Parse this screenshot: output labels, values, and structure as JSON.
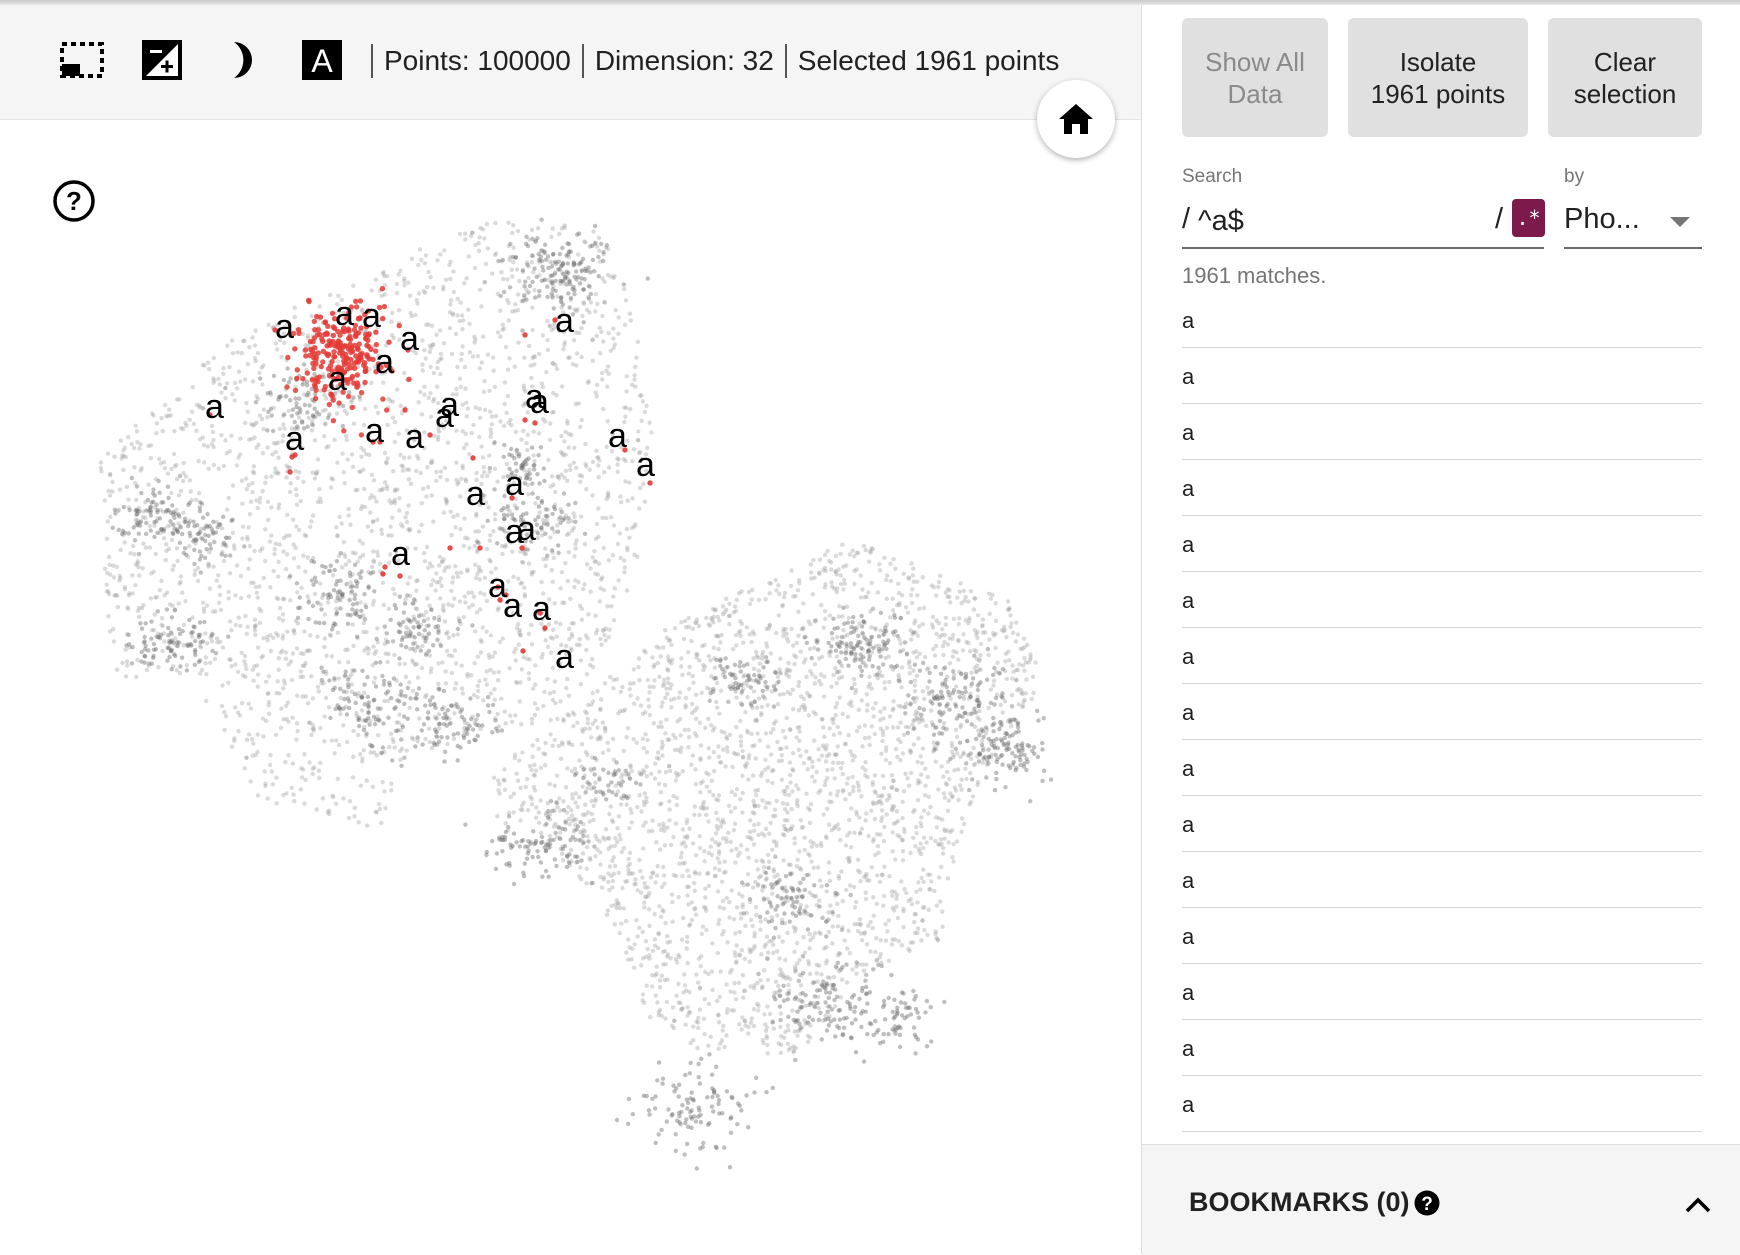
{
  "toolbar": {
    "icons": [
      "rectangle-select-icon",
      "night-mode-contrast-icon",
      "moon-icon",
      "label-a-icon"
    ],
    "points_text": "Points: 100000",
    "dimension_text": "Dimension: 32",
    "selected_text": "Selected 1961 points"
  },
  "actions": {
    "show_all_line1": "Show All",
    "show_all_line2": "Data",
    "isolate_line1": "Isolate",
    "isolate_line2": "1961 points",
    "clear_line1": "Clear",
    "clear_line2": "selection"
  },
  "search": {
    "label": "Search",
    "prefix": "/",
    "value": "^a$",
    "suffix": "/",
    "regex_toggle": ".*",
    "by_label": "by",
    "by_value": "Pho..."
  },
  "matches_text": "1961 matches.",
  "results": [
    "a",
    "a",
    "a",
    "a",
    "a",
    "a",
    "a",
    "a",
    "a",
    "a",
    "a",
    "a",
    "a",
    "a",
    "a"
  ],
  "bookmarks": {
    "title": "BOOKMARKS (0)"
  },
  "scatter": {
    "label_text": "a",
    "background_point_color": "#9e9e9e",
    "selected_point_color": "#e53935"
  },
  "colors": {
    "regex_accent": "#7b1a4b",
    "button_bg": "#e0e0e0",
    "toolbar_bg": "#f5f5f5"
  }
}
